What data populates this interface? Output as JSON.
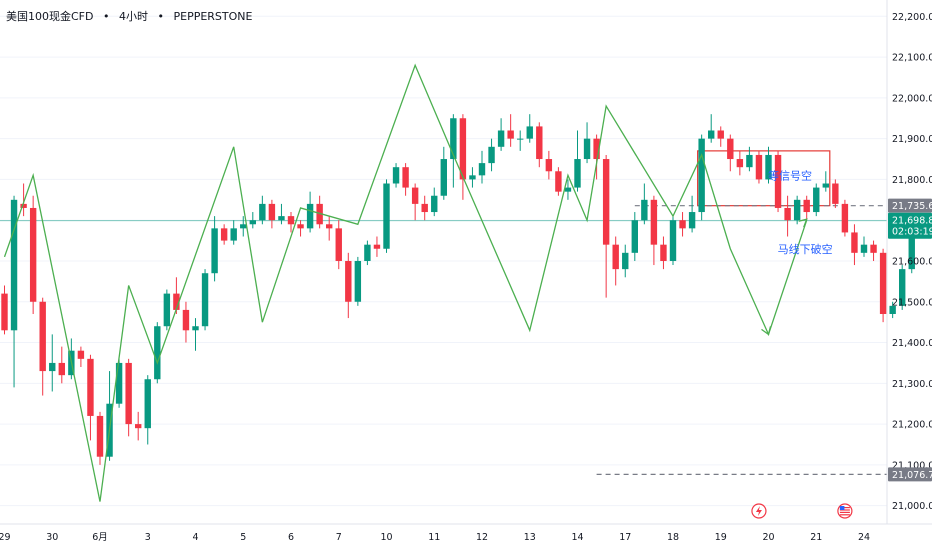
{
  "header": {
    "symbol": "美国100现金CFD",
    "interval": "4小时",
    "broker": "PEPPERSTONE",
    "separator": "•"
  },
  "colors": {
    "up": "#089981",
    "down": "#f23645",
    "zigzag": "#4caf50",
    "box_border": "#e53935",
    "dashed": "#787b86",
    "current_price_line": "#089981",
    "annotation_text": "#2962ff",
    "price_tag_bg": "#089981",
    "level_tag_bg": "#e0e3eb"
  },
  "chart_data": {
    "type": "candlestick",
    "y_axis": {
      "ticks": [
        21000,
        21100,
        21200,
        21300,
        21400,
        21500,
        21600,
        21700,
        21800,
        21900,
        22000,
        22100,
        22200
      ],
      "tick_labels": [
        "21,000.0",
        "21,100.0",
        "21,200.0",
        "21,300.0",
        "21,400.0",
        "21,500.0",
        "21,600.0",
        "21,700.0",
        "21,800.0",
        "21,900.0",
        "22,000.0",
        "22,100.0",
        "22,200.0"
      ],
      "range": [
        20955,
        22240
      ]
    },
    "x_axis": {
      "labels": [
        {
          "text": "29",
          "bar": 0
        },
        {
          "text": "30",
          "bar": 5
        },
        {
          "text": "6月",
          "bar": 10
        },
        {
          "text": "3",
          "bar": 15
        },
        {
          "text": "4",
          "bar": 20
        },
        {
          "text": "5",
          "bar": 25
        },
        {
          "text": "6",
          "bar": 30
        },
        {
          "text": "7",
          "bar": 35
        },
        {
          "text": "10",
          "bar": 40
        },
        {
          "text": "11",
          "bar": 45
        },
        {
          "text": "12",
          "bar": 50
        },
        {
          "text": "13",
          "bar": 55
        },
        {
          "text": "14",
          "bar": 60
        },
        {
          "text": "17",
          "bar": 65
        },
        {
          "text": "18",
          "bar": 70
        },
        {
          "text": "19",
          "bar": 75
        },
        {
          "text": "20",
          "bar": 80
        },
        {
          "text": "21",
          "bar": 85
        },
        {
          "text": "24",
          "bar": 90
        }
      ]
    },
    "candles": [
      [
        21520,
        21430,
        21540,
        21420
      ],
      [
        21430,
        21750,
        21760,
        21290
      ],
      [
        21740,
        21730,
        21790,
        21710
      ],
      [
        21730,
        21500,
        21760,
        21470
      ],
      [
        21500,
        21330,
        21510,
        21270
      ],
      [
        21330,
        21350,
        21420,
        21280
      ],
      [
        21350,
        21320,
        21390,
        21300
      ],
      [
        21320,
        21380,
        21410,
        21310
      ],
      [
        21380,
        21360,
        21390,
        21340
      ],
      [
        21360,
        21220,
        21370,
        21160
      ],
      [
        21220,
        21120,
        21230,
        21100
      ],
      [
        21120,
        21250,
        21330,
        21110
      ],
      [
        21250,
        21350,
        21360,
        21240
      ],
      [
        21350,
        21200,
        21360,
        21170
      ],
      [
        21200,
        21190,
        21230,
        21160
      ],
      [
        21190,
        21310,
        21320,
        21150
      ],
      [
        21310,
        21440,
        21450,
        21300
      ],
      [
        21440,
        21520,
        21530,
        21430
      ],
      [
        21520,
        21480,
        21560,
        21470
      ],
      [
        21480,
        21430,
        21500,
        21400
      ],
      [
        21430,
        21440,
        21460,
        21380
      ],
      [
        21440,
        21570,
        21580,
        21430
      ],
      [
        21570,
        21680,
        21710,
        21550
      ],
      [
        21680,
        21650,
        21690,
        21640
      ],
      [
        21650,
        21680,
        21700,
        21640
      ],
      [
        21680,
        21690,
        21710,
        21660
      ],
      [
        21690,
        21700,
        21720,
        21680
      ],
      [
        21700,
        21740,
        21760,
        21690
      ],
      [
        21740,
        21700,
        21750,
        21680
      ],
      [
        21700,
        21710,
        21740,
        21690
      ],
      [
        21710,
        21690,
        21720,
        21670
      ],
      [
        21690,
        21680,
        21700,
        21660
      ],
      [
        21680,
        21740,
        21770,
        21670
      ],
      [
        21740,
        21690,
        21760,
        21680
      ],
      [
        21690,
        21680,
        21710,
        21650
      ],
      [
        21680,
        21600,
        21700,
        21580
      ],
      [
        21600,
        21500,
        21620,
        21460
      ],
      [
        21500,
        21600,
        21610,
        21490
      ],
      [
        21600,
        21640,
        21650,
        21590
      ],
      [
        21640,
        21630,
        21660,
        21610
      ],
      [
        21630,
        21790,
        21800,
        21620
      ],
      [
        21790,
        21830,
        21840,
        21780
      ],
      [
        21830,
        21780,
        21840,
        21760
      ],
      [
        21780,
        21740,
        21790,
        21700
      ],
      [
        21740,
        21720,
        21760,
        21700
      ],
      [
        21720,
        21760,
        21780,
        21710
      ],
      [
        21760,
        21850,
        21880,
        21750
      ],
      [
        21850,
        21950,
        21960,
        21780
      ],
      [
        21950,
        21800,
        21960,
        21750
      ],
      [
        21800,
        21810,
        21830,
        21780
      ],
      [
        21810,
        21840,
        21870,
        21790
      ],
      [
        21840,
        21880,
        21900,
        21820
      ],
      [
        21880,
        21920,
        21950,
        21870
      ],
      [
        21920,
        21900,
        21960,
        21880
      ],
      [
        21900,
        21900,
        21920,
        21870
      ],
      [
        21900,
        21930,
        21960,
        21890
      ],
      [
        21930,
        21850,
        21940,
        21830
      ],
      [
        21850,
        21820,
        21870,
        21800
      ],
      [
        21820,
        21770,
        21830,
        21760
      ],
      [
        21770,
        21780,
        21800,
        21750
      ],
      [
        21780,
        21850,
        21920,
        21770
      ],
      [
        21850,
        21900,
        21940,
        21840
      ],
      [
        21900,
        21850,
        21910,
        21800
      ],
      [
        21850,
        21640,
        21860,
        21510
      ],
      [
        21640,
        21580,
        21660,
        21540
      ],
      [
        21580,
        21620,
        21640,
        21560
      ],
      [
        21620,
        21700,
        21720,
        21600
      ],
      [
        21700,
        21750,
        21790,
        21690
      ],
      [
        21750,
        21640,
        21760,
        21590
      ],
      [
        21640,
        21600,
        21660,
        21580
      ],
      [
        21600,
        21700,
        21710,
        21590
      ],
      [
        21700,
        21680,
        21720,
        21660
      ],
      [
        21680,
        21720,
        21760,
        21670
      ],
      [
        21720,
        21900,
        21910,
        21700
      ],
      [
        21900,
        21920,
        21960,
        21890
      ],
      [
        21920,
        21900,
        21930,
        21880
      ],
      [
        21900,
        21850,
        21910,
        21820
      ],
      [
        21850,
        21830,
        21870,
        21810
      ],
      [
        21830,
        21860,
        21880,
        21820
      ],
      [
        21860,
        21800,
        21870,
        21790
      ],
      [
        21800,
        21860,
        21880,
        21790
      ],
      [
        21860,
        21730,
        21870,
        21720
      ],
      [
        21730,
        21700,
        21760,
        21660
      ],
      [
        21700,
        21750,
        21760,
        21690
      ],
      [
        21750,
        21720,
        21760,
        21700
      ],
      [
        21720,
        21780,
        21790,
        21710
      ],
      [
        21780,
        21790,
        21820,
        21770
      ],
      [
        21790,
        21740,
        21800,
        21730
      ],
      [
        21740,
        21670,
        21750,
        21660
      ],
      [
        21670,
        21620,
        21690,
        21590
      ],
      [
        21620,
        21640,
        21660,
        21610
      ],
      [
        21640,
        21620,
        21650,
        21600
      ],
      [
        21620,
        21470,
        21630,
        21450
      ],
      [
        21470,
        21490,
        21500,
        21460
      ],
      [
        21490,
        21580,
        21590,
        21480
      ],
      [
        21580,
        21690,
        21700,
        21570
      ],
      [
        21690,
        21699,
        21710,
        21680
      ]
    ],
    "zigzag": [
      [
        0,
        21610
      ],
      [
        3,
        21810
      ],
      [
        10,
        21010
      ],
      [
        13,
        21540
      ],
      [
        16,
        21350
      ],
      [
        24,
        21880
      ],
      [
        27,
        21450
      ],
      [
        31,
        21730
      ],
      [
        37,
        21690
      ],
      [
        43,
        22080
      ],
      [
        47,
        21860
      ],
      [
        55,
        21430
      ],
      [
        59,
        21810
      ],
      [
        61,
        21700
      ],
      [
        63,
        21980
      ],
      [
        70,
        21710
      ],
      [
        73,
        21860
      ],
      [
        76,
        21630
      ],
      [
        80,
        21420
      ],
      [
        84,
        21700
      ]
    ],
    "current_price": 21698.8,
    "current_price_label": "21,698.8",
    "countdown_label": "02:03:19",
    "levels": [
      {
        "value": 21735.6,
        "label": "21,735.6",
        "from_bar": 66
      },
      {
        "value": 21076.7,
        "label": "21,076.7",
        "from_bar": 62
      }
    ],
    "box": {
      "bar_start": 73,
      "bar_end": 86,
      "top": 21870,
      "bottom": 21735.6
    },
    "annotations": [
      {
        "text": "等信号空",
        "bar": 81,
        "value": 21800
      },
      {
        "text": "马线下破空",
        "bar": 82,
        "value": 21620
      }
    ],
    "event_icons": [
      {
        "name": "flash-icon",
        "bar": 79
      },
      {
        "name": "us-flag-icon",
        "bar": 88
      }
    ]
  }
}
